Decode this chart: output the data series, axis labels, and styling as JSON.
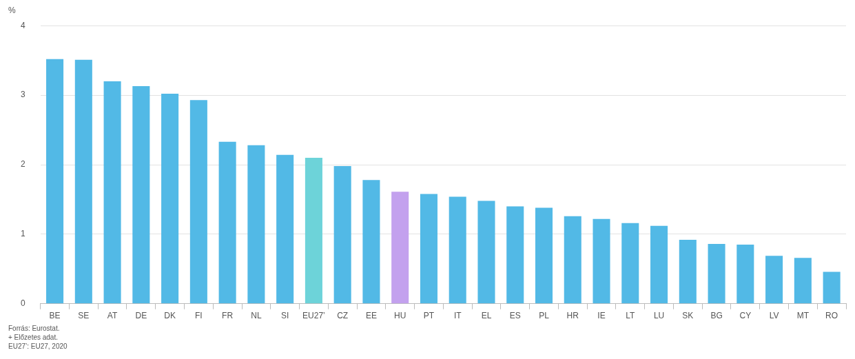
{
  "chart_data": {
    "type": "bar",
    "ylabel": "%",
    "categories": [
      "BE",
      "SE",
      "AT",
      "DE",
      "DK",
      "FI",
      "FR",
      "NL",
      "SI",
      "EU27’",
      "CZ",
      "EE",
      "HU",
      "PT",
      "IT",
      "EL",
      "ES",
      "PL",
      "HR",
      "IE",
      "LT",
      "LU",
      "SK",
      "BG",
      "CY",
      "LV",
      "MT",
      "RO"
    ],
    "values": [
      3.52,
      3.51,
      3.2,
      3.13,
      3.02,
      2.93,
      2.33,
      2.28,
      2.14,
      2.1,
      1.98,
      1.78,
      1.61,
      1.58,
      1.54,
      1.48,
      1.4,
      1.38,
      1.26,
      1.22,
      1.16,
      1.12,
      0.92,
      0.86,
      0.85,
      0.69,
      0.66,
      0.46
    ],
    "colors": [
      "#52b9e6",
      "#52b9e6",
      "#52b9e6",
      "#52b9e6",
      "#52b9e6",
      "#52b9e6",
      "#52b9e6",
      "#52b9e6",
      "#52b9e6",
      "#6dd3d9",
      "#52b9e6",
      "#52b9e6",
      "#c3a1ee",
      "#52b9e6",
      "#52b9e6",
      "#52b9e6",
      "#52b9e6",
      "#52b9e6",
      "#52b9e6",
      "#52b9e6",
      "#52b9e6",
      "#52b9e6",
      "#52b9e6",
      "#52b9e6",
      "#52b9e6",
      "#52b9e6",
      "#52b9e6",
      "#52b9e6"
    ],
    "ylim": [
      0,
      4
    ],
    "yticks": [
      0,
      1,
      2,
      3,
      4
    ],
    "grid": "y",
    "legend": false,
    "annotations": [
      "Forrás: Eurostat.",
      "+ Előzetes adat.",
      "EU27’: EU27, 2020"
    ]
  }
}
